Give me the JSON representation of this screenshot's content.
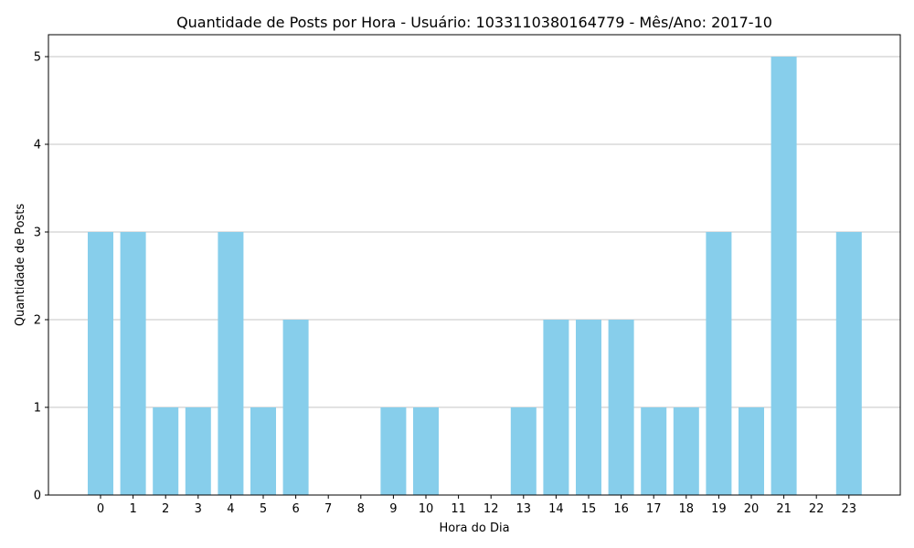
{
  "chart_data": {
    "type": "bar",
    "title": "Quantidade de Posts por Hora - Usuário: 1033110380164779 - Mês/Ano: 2017-10",
    "xlabel": "Hora do Dia",
    "ylabel": "Quantidade de Posts",
    "categories": [
      "0",
      "1",
      "2",
      "3",
      "4",
      "5",
      "6",
      "7",
      "8",
      "9",
      "10",
      "11",
      "12",
      "13",
      "14",
      "15",
      "16",
      "17",
      "18",
      "19",
      "20",
      "21",
      "22",
      "23"
    ],
    "values": [
      3,
      3,
      1,
      1,
      3,
      1,
      2,
      0,
      0,
      1,
      1,
      0,
      0,
      1,
      2,
      2,
      2,
      1,
      1,
      3,
      1,
      5,
      0,
      3
    ],
    "yticks": [
      "0",
      "1",
      "2",
      "3",
      "4",
      "5"
    ],
    "ylim": [
      0,
      5.25
    ],
    "grid": "horizontal",
    "bar_color": "#87CEEB"
  }
}
